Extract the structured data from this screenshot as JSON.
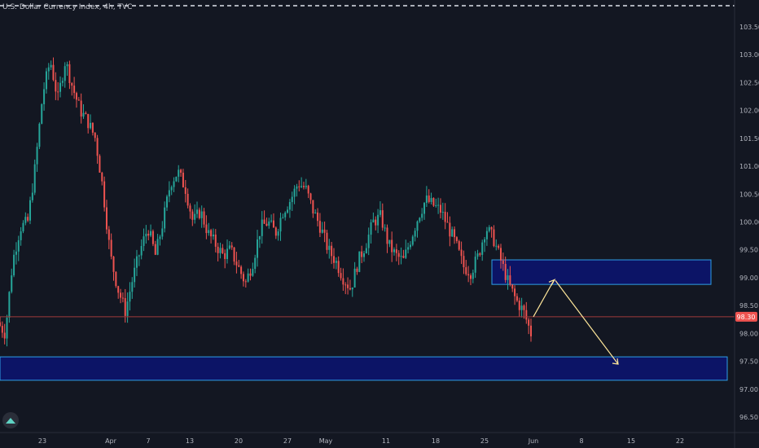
{
  "title": "U.S. Dollar Currency Index, 4h, TVC",
  "colors": {
    "background": "#131722",
    "up": "#26a69a",
    "down": "#ef5350",
    "axis_text": "#b2b5be",
    "zone_fill": "#0c1466",
    "zone_border": "#2e9fe6",
    "arrow": "#ffe79a",
    "current_line": "#a03b3b",
    "price_label_bg": "#ef5350"
  },
  "icons": {
    "logo": "tradingview-logo-icon"
  },
  "chart_data": {
    "type": "candlestick",
    "title": "U.S. Dollar Currency Index, 4h, TVC",
    "ylim": [
      96.2,
      103.95
    ],
    "y_ticks": [
      96.5,
      97.0,
      97.5,
      98.0,
      98.5,
      99.0,
      99.5,
      100.0,
      100.5,
      101.0,
      101.5,
      102.0,
      102.5,
      103.0,
      103.5
    ],
    "y_tick_labels": [
      "96.50",
      "97.00",
      "97.50",
      "98.00",
      "98.50",
      "99.00",
      "99.50",
      "100.00",
      "100.50",
      "101.00",
      "101.50",
      "102.00",
      "102.50",
      "103.00",
      "103.50"
    ],
    "x_tick_labels": [
      "23",
      "Apr",
      "7",
      "13",
      "20",
      "27",
      "May",
      "11",
      "18",
      "25",
      "Jun",
      "8",
      "15",
      "22"
    ],
    "current_price": 98.3,
    "current_price_label": "98.30",
    "close_path": [
      [
        0,
        98.2
      ],
      [
        1,
        98.0
      ],
      [
        2,
        99.3
      ],
      [
        3,
        99.9
      ],
      [
        4,
        100.0
      ],
      [
        5,
        101.0
      ],
      [
        6,
        102.3
      ],
      [
        7,
        102.9
      ],
      [
        8,
        102.2
      ],
      [
        9,
        102.9
      ],
      [
        10,
        102.4
      ],
      [
        11,
        102.0
      ],
      [
        12,
        101.8
      ],
      [
        13,
        101.5
      ],
      [
        14,
        100.6
      ],
      [
        15,
        99.4
      ],
      [
        16,
        98.8
      ],
      [
        17,
        98.4
      ],
      [
        18,
        99.0
      ],
      [
        19,
        99.5
      ],
      [
        20,
        99.9
      ],
      [
        21,
        99.4
      ],
      [
        22,
        100.0
      ],
      [
        23,
        100.7
      ],
      [
        24,
        100.9
      ],
      [
        25,
        100.6
      ],
      [
        26,
        100.0
      ],
      [
        27,
        100.2
      ],
      [
        28,
        99.8
      ],
      [
        29,
        99.6
      ],
      [
        30,
        99.4
      ],
      [
        31,
        99.5
      ],
      [
        32,
        99.2
      ],
      [
        33,
        98.9
      ],
      [
        34,
        99.3
      ],
      [
        35,
        99.9
      ],
      [
        36,
        100.0
      ],
      [
        37,
        99.8
      ],
      [
        38,
        100.2
      ],
      [
        39,
        100.4
      ],
      [
        40,
        100.7
      ],
      [
        41,
        100.6
      ],
      [
        42,
        100.2
      ],
      [
        43,
        99.9
      ],
      [
        44,
        99.5
      ],
      [
        45,
        99.3
      ],
      [
        46,
        99.0
      ],
      [
        47,
        98.8
      ],
      [
        48,
        99.3
      ],
      [
        49,
        99.6
      ],
      [
        50,
        100.0
      ],
      [
        51,
        100.1
      ],
      [
        52,
        99.6
      ],
      [
        53,
        99.4
      ],
      [
        54,
        99.3
      ],
      [
        55,
        99.7
      ],
      [
        56,
        100.1
      ],
      [
        57,
        100.4
      ],
      [
        58,
        100.3
      ],
      [
        59,
        100.2
      ],
      [
        60,
        99.9
      ],
      [
        61,
        99.6
      ],
      [
        62,
        99.2
      ],
      [
        63,
        99.1
      ],
      [
        64,
        99.4
      ],
      [
        65,
        99.9
      ],
      [
        66,
        99.7
      ],
      [
        67,
        99.3
      ],
      [
        68,
        98.9
      ],
      [
        69,
        98.6
      ],
      [
        70,
        98.4
      ],
      [
        71,
        98.0
      ]
    ],
    "zones": [
      {
        "name": "resistance-zone",
        "top": 99.32,
        "bottom": 98.88
      },
      {
        "name": "support-zone",
        "top": 97.58,
        "bottom": 97.16
      }
    ],
    "projection": [
      [
        98.3
      ],
      [
        98.95
      ],
      [
        97.45
      ]
    ]
  }
}
